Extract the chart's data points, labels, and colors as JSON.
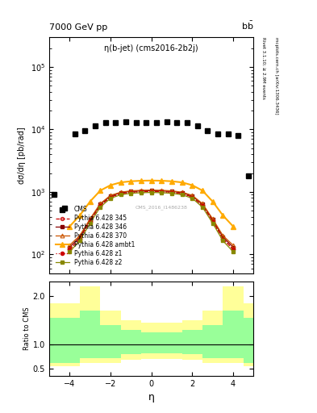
{
  "title_left": "7000 GeV pp",
  "title_right": "b$\\bar{\\text{b}}$",
  "plot_title": "η(b-jet) (cms2016-2b2j)",
  "ylabel_main": "dσ/dη [pb/rad]",
  "ylabel_ratio": "Ratio to CMS",
  "xlabel": "η",
  "right_label_top": "Rivet 3.1.10; ≥ 2.9M events",
  "right_label_bot": "mcplots.cern.ch [arXiv:1306.3436]",
  "watermark": "CMS_2016_I1486238",
  "xlim": [
    -5.0,
    5.0
  ],
  "ylim_main": [
    50,
    300000
  ],
  "ylim_ratio": [
    0.35,
    2.3
  ],
  "ratio_yticks": [
    0.5,
    1.0,
    2.0
  ],
  "cms_eta": [
    -4.75,
    -4.25,
    -3.75,
    -3.25,
    -2.75,
    -2.25,
    -1.75,
    -1.25,
    -0.75,
    -0.25,
    0.25,
    0.75,
    1.25,
    1.75,
    2.25,
    2.75,
    3.25,
    3.75,
    4.25,
    4.75
  ],
  "cms_vals": [
    900,
    550,
    8500,
    9500,
    11500,
    12800,
    13000,
    13200,
    13000,
    13000,
    13000,
    13200,
    13000,
    12800,
    11500,
    9500,
    8500,
    8500,
    8000,
    1800
  ],
  "eta_pts": [
    -4.0,
    -3.5,
    -3.0,
    -2.5,
    -2.0,
    -1.5,
    -1.0,
    -0.5,
    0.0,
    0.5,
    1.0,
    1.5,
    2.0,
    2.5,
    3.0,
    3.5,
    4.0
  ],
  "p345_vals": [
    120,
    180,
    340,
    600,
    830,
    940,
    990,
    1010,
    1020,
    1010,
    990,
    940,
    830,
    600,
    340,
    180,
    120
  ],
  "p346_vals": [
    130,
    190,
    360,
    630,
    860,
    970,
    1020,
    1040,
    1050,
    1040,
    1020,
    970,
    860,
    630,
    360,
    190,
    130
  ],
  "p370_vals": [
    140,
    200,
    370,
    650,
    880,
    990,
    1040,
    1060,
    1070,
    1060,
    1040,
    990,
    880,
    650,
    370,
    200,
    140
  ],
  "pambt_vals": [
    280,
    420,
    700,
    1050,
    1280,
    1420,
    1480,
    1510,
    1520,
    1510,
    1480,
    1420,
    1280,
    1050,
    700,
    420,
    280
  ],
  "pz1_vals": [
    120,
    175,
    335,
    595,
    820,
    930,
    980,
    1000,
    1010,
    1000,
    980,
    930,
    820,
    595,
    335,
    175,
    120
  ],
  "pz2_vals": [
    110,
    165,
    315,
    570,
    790,
    900,
    950,
    970,
    980,
    970,
    950,
    900,
    790,
    570,
    315,
    165,
    110
  ],
  "eta_bins": [
    -5.0,
    -4.5,
    -3.5,
    -2.5,
    -1.5,
    -0.5,
    0.5,
    1.5,
    2.5,
    3.5,
    4.5,
    5.0
  ],
  "yellow_top": [
    1.85,
    1.85,
    2.2,
    1.7,
    1.5,
    1.45,
    1.45,
    1.5,
    1.7,
    2.2,
    1.85,
    1.85
  ],
  "yellow_bot": [
    0.55,
    0.55,
    0.62,
    0.62,
    0.68,
    0.7,
    0.7,
    0.68,
    0.62,
    0.62,
    0.55,
    0.55
  ],
  "green_top": [
    1.55,
    1.55,
    1.7,
    1.4,
    1.3,
    1.25,
    1.25,
    1.3,
    1.4,
    1.7,
    1.55,
    1.55
  ],
  "green_bot": [
    0.62,
    0.62,
    0.72,
    0.72,
    0.8,
    0.82,
    0.82,
    0.8,
    0.72,
    0.72,
    0.62,
    0.62
  ],
  "color_345": "#cc0000",
  "color_346": "#880000",
  "color_370": "#cc5500",
  "color_ambt": "#ffaa00",
  "color_z1": "#cc0000",
  "color_z2": "#888800",
  "color_cms": "black",
  "color_yellow": "#ffff99",
  "color_green": "#99ff99"
}
